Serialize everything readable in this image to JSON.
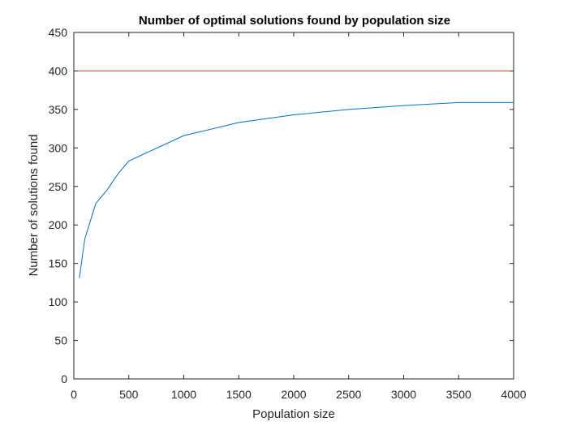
{
  "chart_data": {
    "type": "line",
    "title": "Number of optimal solutions found by population size",
    "xlabel": "Population size",
    "ylabel": "Number of solutions found",
    "xlim": [
      0,
      4000
    ],
    "ylim": [
      0,
      450
    ],
    "xticks": [
      0,
      500,
      1000,
      1500,
      2000,
      2500,
      3000,
      3500,
      4000
    ],
    "yticks": [
      0,
      50,
      100,
      150,
      200,
      250,
      300,
      350,
      400,
      450
    ],
    "grid": false,
    "series": [
      {
        "color": "#0072bd",
        "x": [
          50,
          100,
          200,
          300,
          400,
          500,
          1000,
          1500,
          2000,
          2500,
          3000,
          3500,
          4000
        ],
        "y": [
          131,
          182,
          228,
          245,
          266,
          283,
          316,
          333,
          343,
          350,
          355,
          359,
          359
        ]
      },
      {
        "color": "#d95319",
        "x": [
          0,
          4000
        ],
        "y": [
          400,
          400
        ]
      }
    ]
  }
}
